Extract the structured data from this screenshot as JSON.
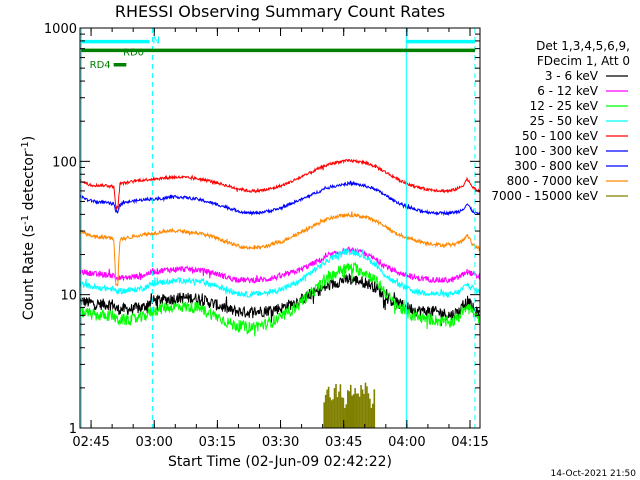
{
  "chart_data": {
    "type": "line",
    "title": "RHESSI Observing Summary Count Rates",
    "xlabel": "Start Time (02-Jun-09 02:42:22)",
    "ylabel_main": "Count Rate (s",
    "ylabel_sup1": "-1",
    "ylabel_mid": " detector",
    "ylabel_sup2": "-1",
    "ylabel_end": ")",
    "y_scale": "log",
    "ylim": [
      1,
      1000
    ],
    "xlim_minutes": [
      0,
      95
    ],
    "x_ticks": [
      {
        "m": 2.63,
        "label": "02:45"
      },
      {
        "m": 17.63,
        "label": "03:00"
      },
      {
        "m": 32.63,
        "label": "03:15"
      },
      {
        "m": 47.63,
        "label": "03:30"
      },
      {
        "m": 62.63,
        "label": "03:45"
      },
      {
        "m": 77.63,
        "label": "04:00"
      },
      {
        "m": 92.63,
        "label": "04:15"
      }
    ],
    "y_ticks": [
      {
        "v": 1,
        "label": "1"
      },
      {
        "v": 10,
        "label": "10"
      },
      {
        "v": 100,
        "label": "100"
      },
      {
        "v": 1000,
        "label": "1000"
      }
    ],
    "legend_header": [
      "Det 1,3,4,5,6,9,",
      "FDecim 1, Att 0"
    ],
    "legend_position": "right",
    "series": [
      {
        "name": "3 - 6 keV",
        "color": "#000000",
        "x": [
          0,
          4,
          8,
          8.5,
          12,
          15,
          17,
          20,
          24,
          28,
          32,
          36,
          40,
          44,
          48,
          52,
          56,
          60,
          62,
          64,
          66,
          68,
          70,
          72,
          74,
          76,
          78,
          80,
          84,
          86,
          88,
          90,
          92,
          94,
          95
        ],
        "y": [
          9,
          8.5,
          8.5,
          7.8,
          7.8,
          8,
          9,
          9.2,
          9.5,
          9.4,
          8.5,
          7.6,
          7.4,
          7.6,
          8,
          9,
          10.5,
          12,
          12.8,
          13,
          12.8,
          12.3,
          11.5,
          10,
          9,
          8.5,
          8,
          7.6,
          7.5,
          7.3,
          7,
          7.5,
          9,
          7.4,
          7.2
        ]
      },
      {
        "name": "6 - 12 keV",
        "color": "#ff00ff",
        "x": [
          0,
          4,
          8,
          8.5,
          12,
          15,
          17,
          20,
          24,
          28,
          32,
          36,
          40,
          44,
          48,
          52,
          56,
          60,
          62,
          64,
          66,
          68,
          70,
          72,
          74,
          76,
          78,
          80,
          84,
          86,
          88,
          90,
          92,
          94,
          95
        ],
        "y": [
          15,
          14.2,
          14,
          13.3,
          13.5,
          14,
          14.8,
          15.3,
          15.6,
          15.4,
          14.5,
          13.2,
          12.8,
          13,
          13.8,
          15.2,
          17.5,
          20,
          21,
          21.5,
          21,
          20,
          18.5,
          16.8,
          15.5,
          14.5,
          13.8,
          13.3,
          13,
          12.8,
          12.8,
          13.5,
          15,
          13.8,
          13.5
        ]
      },
      {
        "name": "12 - 25 keV",
        "color": "#00ff00",
        "x": [
          0,
          4,
          8,
          8.5,
          12,
          15,
          17,
          20,
          24,
          28,
          32,
          36,
          40,
          44,
          48,
          52,
          56,
          60,
          62,
          64,
          66,
          68,
          70,
          72,
          74,
          76,
          78,
          80,
          84,
          86,
          88,
          90,
          92,
          94,
          95
        ],
        "y": [
          7.5,
          7,
          7,
          6.5,
          6.5,
          6.8,
          7.5,
          8,
          8.2,
          8,
          7,
          6,
          5.7,
          6,
          6.8,
          8.5,
          11,
          14,
          15.5,
          16,
          15.5,
          14.5,
          13,
          11,
          9,
          8,
          7.2,
          6.8,
          6.5,
          6.3,
          6.2,
          6.8,
          8.5,
          6.8,
          6.7
        ]
      },
      {
        "name": "25 - 50 keV",
        "color": "#00ffff",
        "x": [
          0,
          4,
          8,
          8.5,
          12,
          15,
          17,
          20,
          24,
          28,
          32,
          36,
          40,
          44,
          48,
          52,
          56,
          60,
          62,
          64,
          66,
          68,
          70,
          72,
          74,
          76,
          78,
          80,
          84,
          86,
          88,
          90,
          92,
          94,
          95
        ],
        "y": [
          12,
          11.3,
          11,
          10.6,
          10.8,
          11.2,
          12,
          12.5,
          12.8,
          12.6,
          11.8,
          10.5,
          10,
          10.3,
          11,
          12.5,
          15.5,
          19,
          20.5,
          21,
          20.5,
          19,
          17,
          14.5,
          12.8,
          11.8,
          11,
          10.5,
          10.2,
          10,
          10,
          10.5,
          12,
          10.8,
          10.5
        ]
      },
      {
        "name": "50 - 100 keV",
        "color": "#ff0000",
        "x": [
          0,
          1,
          2,
          4,
          6,
          8,
          8.5,
          9,
          9.5,
          12,
          14,
          16,
          18,
          20,
          22,
          24,
          26,
          28,
          30,
          32,
          34,
          36,
          38,
          40,
          42,
          44,
          46,
          48,
          50,
          52,
          54,
          56,
          58,
          60,
          62,
          64,
          66,
          68,
          70,
          72,
          74,
          76,
          78,
          80,
          82,
          84,
          86,
          88,
          90,
          91,
          92,
          93,
          94,
          95
        ],
        "y": [
          72,
          70,
          67,
          66,
          66,
          65,
          45,
          45,
          68,
          70,
          72,
          73,
          74,
          75,
          76,
          76,
          75,
          74,
          72,
          70,
          67,
          64,
          62,
          60,
          60,
          61,
          63,
          66,
          70,
          75,
          80,
          86,
          92,
          97,
          100,
          101,
          100,
          97,
          92,
          85,
          78,
          72,
          67,
          64,
          62,
          61,
          60,
          60,
          63,
          66,
          74,
          66,
          61,
          60
        ]
      },
      {
        "name": "100 - 300 keV",
        "color": "#0000ff",
        "x": [
          0,
          1,
          2,
          4,
          6,
          8,
          8.5,
          9,
          9.5,
          12,
          14,
          16,
          18,
          20,
          22,
          24,
          26,
          28,
          30,
          32,
          34,
          36,
          38,
          40,
          42,
          44,
          46,
          48,
          50,
          52,
          54,
          56,
          58,
          60,
          62,
          64,
          66,
          68,
          70,
          72,
          74,
          76,
          78,
          80,
          82,
          84,
          86,
          88,
          90,
          91,
          92,
          93,
          94,
          95
        ],
        "y": [
          55,
          53,
          51,
          50,
          49,
          48,
          42,
          42,
          48,
          50,
          51,
          52,
          52,
          53,
          54,
          54,
          53,
          52,
          50,
          48,
          46,
          44,
          42,
          41,
          41,
          42,
          43,
          45,
          48,
          51,
          54,
          58,
          62,
          65,
          67,
          68,
          67,
          65,
          62,
          57,
          52,
          48,
          45,
          43,
          42,
          41,
          41,
          41,
          42,
          44,
          48,
          43,
          41,
          40
        ]
      },
      {
        "name": "300 - 800 keV",
        "color": "#0000ff",
        "x": [
          0,
          95
        ],
        "y": [
          null,
          null
        ]
      },
      {
        "name": "800 - 7000 keV",
        "color": "#ff8800",
        "x": [
          0,
          1,
          2,
          4,
          6,
          8,
          8.5,
          9,
          9.5,
          12,
          14,
          16,
          18,
          20,
          22,
          24,
          26,
          28,
          30,
          32,
          34,
          36,
          38,
          40,
          42,
          44,
          46,
          48,
          50,
          52,
          54,
          56,
          58,
          60,
          62,
          64,
          66,
          68,
          70,
          72,
          74,
          76,
          78,
          80,
          82,
          84,
          86,
          88,
          90,
          91,
          92,
          93,
          94,
          95
        ],
        "y": [
          30,
          29,
          28,
          27,
          27,
          26.5,
          12,
          12,
          26,
          27,
          28,
          28.5,
          29,
          30,
          30,
          30,
          29.5,
          29,
          28,
          27,
          25.5,
          24,
          23,
          22.5,
          22.5,
          23,
          24,
          25,
          27,
          29,
          31,
          33.5,
          36,
          38,
          39,
          39.5,
          39,
          38,
          36,
          33.5,
          30,
          28,
          26.5,
          25.5,
          24.5,
          24,
          23.5,
          23.5,
          24.5,
          25.5,
          28,
          24.5,
          23,
          22
        ]
      },
      {
        "name": "7000 - 15000 keV",
        "color": "#808000",
        "x": [
          58,
          59,
          60,
          61,
          62,
          63,
          64,
          65,
          66,
          67,
          68,
          69,
          70
        ],
        "y": [
          1.4,
          2,
          1.6,
          2,
          2,
          1.6,
          2,
          2,
          1.6,
          2,
          2,
          1.5,
          1.8
        ]
      }
    ],
    "annotations": [
      {
        "label": "N",
        "color": "#00ffff",
        "x_start": 0.3,
        "x_end": 16.5,
        "y": 790
      },
      {
        "label": "",
        "color": "#00ffff",
        "x_start": 77.5,
        "x_end": 93.8,
        "y": 790
      },
      {
        "label": "RD0",
        "color": "#008000",
        "x_start": 0.3,
        "x_end": 93.8,
        "y": 680
      },
      {
        "label": "RD4",
        "color": "#008000",
        "x_start": 8.0,
        "x_end": 11.0,
        "y": 530
      }
    ],
    "vertical_lines": [
      {
        "x": 0.3,
        "style": "solid",
        "color": "#00ffff"
      },
      {
        "x": 17.2,
        "style": "dashed",
        "color": "#00ffff"
      },
      {
        "x": 77.5,
        "style": "solid",
        "color": "#00ffff"
      },
      {
        "x": 93.8,
        "style": "dashed",
        "color": "#00ffff"
      }
    ]
  },
  "footer_timestamp": "14-Oct-2021 21:50"
}
